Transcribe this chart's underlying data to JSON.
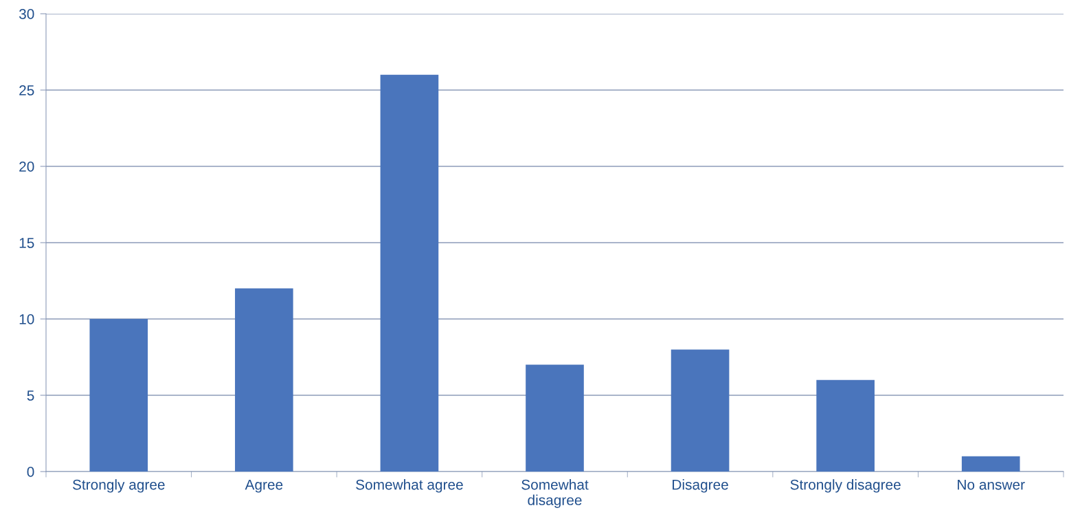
{
  "chart_data": {
    "type": "bar",
    "categories": [
      "Strongly agree",
      "Agree",
      "Somewhat agree",
      "Somewhat\ndisagree",
      "Disagree",
      "Strongly disagree",
      "No answer"
    ],
    "values": [
      10,
      12,
      26,
      7,
      8,
      6,
      1
    ],
    "color": "#4a75bc",
    "ylim": [
      0,
      30
    ],
    "yticks": [
      0,
      5,
      10,
      15,
      20,
      25,
      30
    ],
    "grid": "y"
  }
}
